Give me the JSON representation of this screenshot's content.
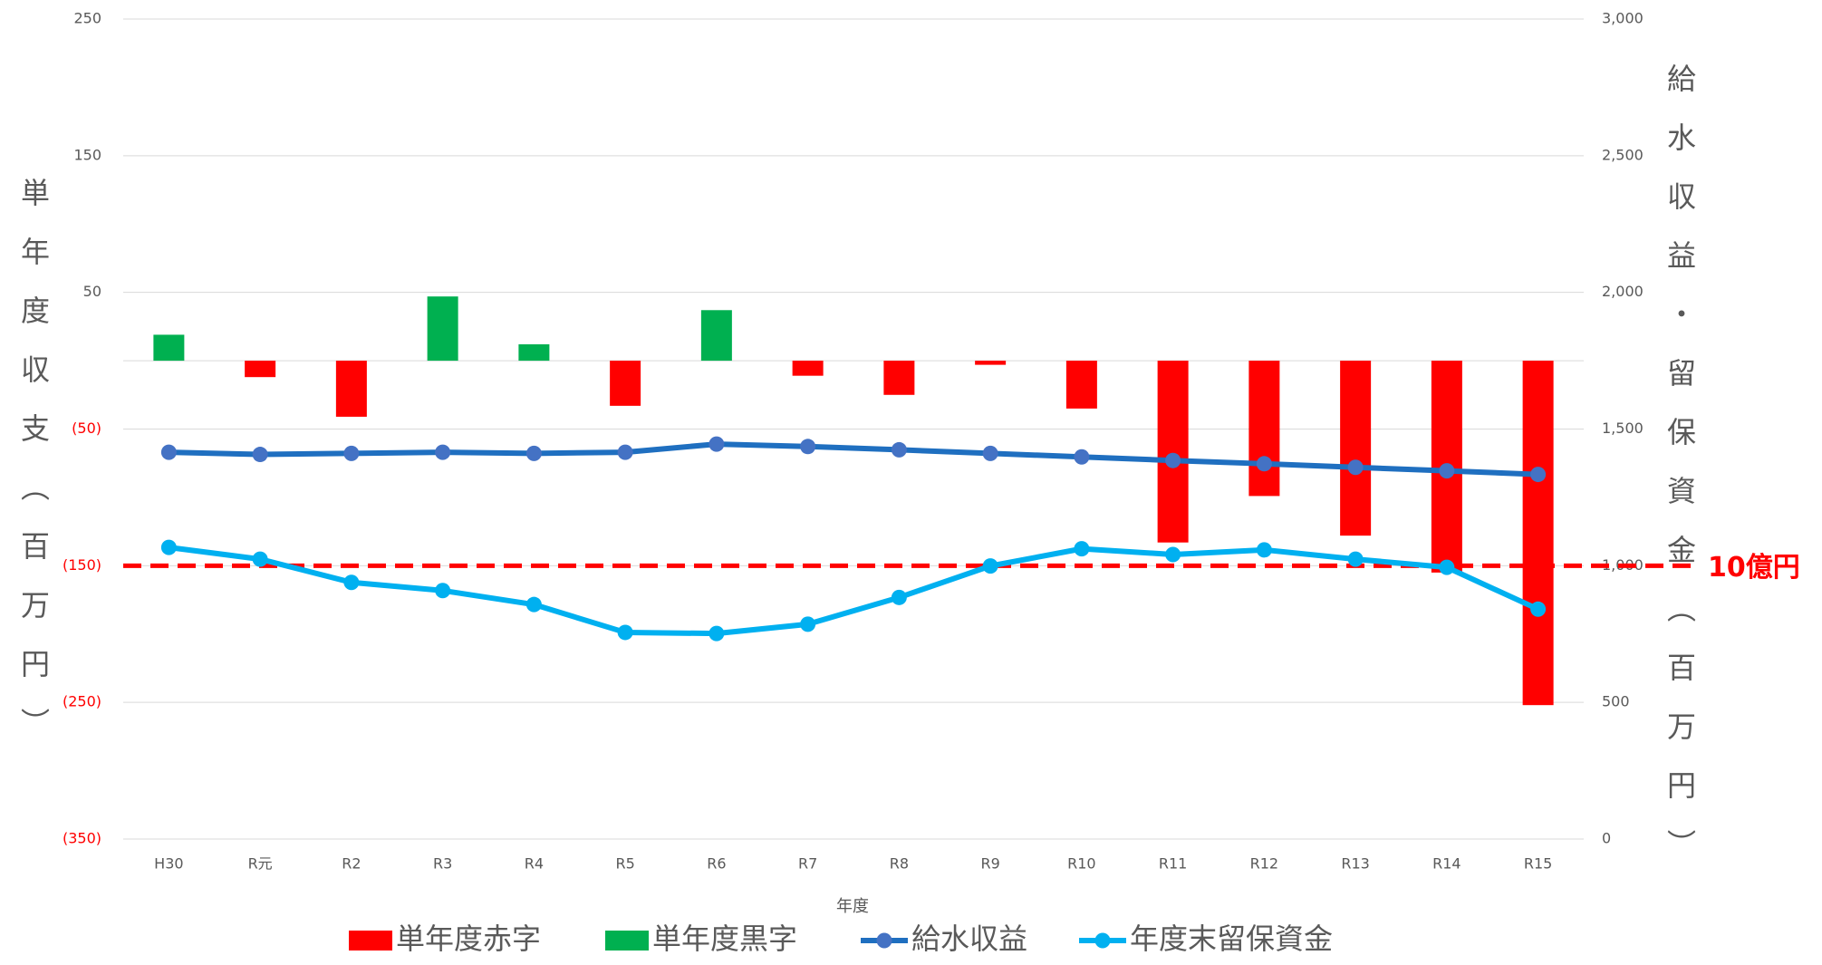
{
  "chart_data": {
    "type": "combo",
    "x_label": "年度",
    "y_label": "単年度収支（百万円）",
    "y2_label": "給水収益・留保資金（百万円）",
    "categories": [
      "H30",
      "R元",
      "R2",
      "R3",
      "R4",
      "R5",
      "R6",
      "R7",
      "R8",
      "R9",
      "R10",
      "R11",
      "R12",
      "R13",
      "R14",
      "R15"
    ],
    "series": [
      {
        "name": "単年度赤字",
        "type": "bar",
        "color": "#ff0000",
        "values": [
          null,
          -12,
          -41,
          null,
          null,
          -33,
          null,
          -11,
          -25,
          -3,
          -35,
          -133,
          -99,
          -128,
          -155,
          -252
        ]
      },
      {
        "name": "単年度黒字",
        "type": "bar",
        "color": "#00b050",
        "values": [
          19,
          null,
          null,
          47,
          12,
          null,
          37,
          null,
          null,
          null,
          null,
          null,
          null,
          null,
          null,
          null
        ]
      },
      {
        "name": "給水収益",
        "type": "line",
        "axis": "y2",
        "color": "#1f6fc0",
        "marker_color": "#4472c4",
        "values": [
          1415,
          1407,
          1411,
          1415,
          1411,
          1415,
          1445,
          1436,
          1424,
          1411,
          1398,
          1385,
          1373,
          1360,
          1347,
          1334
        ]
      },
      {
        "name": "年度末留保資金",
        "type": "line",
        "axis": "y2",
        "color": "#00b0f0",
        "marker_color": "#00b0f0",
        "values": [
          1067,
          1024,
          939,
          909,
          858,
          756,
          752,
          786,
          884,
          999,
          1062,
          1041,
          1058,
          1024,
          994,
          841
        ]
      }
    ],
    "ylim": [
      -350,
      250
    ],
    "yticks": [
      {
        "value": -350,
        "label": "(350)"
      },
      {
        "value": -250,
        "label": "(250)"
      },
      {
        "value": -150,
        "label": "(150)"
      },
      {
        "value": -50,
        "label": "(50)"
      },
      50,
      150,
      250
    ],
    "negative_tick_color": "#ff0000",
    "y2lim": [
      0,
      3000
    ],
    "y2ticks": [
      0,
      500,
      {
        "value": 1000,
        "label": "1,000"
      },
      {
        "value": 1500,
        "label": "1,500"
      },
      {
        "value": 2000,
        "label": "2,000"
      },
      {
        "value": 2500,
        "label": "2,500"
      },
      {
        "value": 3000,
        "label": "3,000"
      }
    ],
    "grid": true,
    "reference_line": {
      "value": 1000,
      "axis": "y2",
      "label": "10億円",
      "color": "#ff0000"
    },
    "legend": "bottom"
  }
}
